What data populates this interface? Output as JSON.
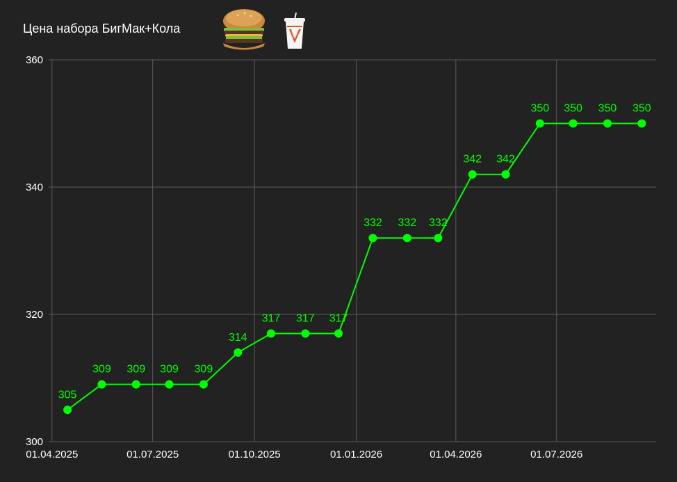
{
  "title": "Цена набора БигМак+Кола",
  "icons": [
    "burger-icon",
    "cola-cup-icon"
  ],
  "colors": {
    "background": "#222222",
    "grid": "#5a5a5a",
    "series": "#00ff00",
    "text": "#ffffff"
  },
  "chart_data": {
    "type": "line",
    "title": "Цена набора БигМак+Кола",
    "xlabel": "",
    "ylabel": "",
    "x_ticks": [
      "01.04.2025",
      "01.07.2025",
      "01.10.2025",
      "01.01.2026",
      "01.04.2026",
      "01.07.2026"
    ],
    "y_ticks": [
      300,
      320,
      340,
      360
    ],
    "ylim": [
      300,
      360
    ],
    "xlim": [
      "2025-03-29",
      "2026-09-29"
    ],
    "grid": true,
    "legend": false,
    "series": [
      {
        "x": [
          "2025-04-15",
          "2025-05-16",
          "2025-06-16",
          "2025-07-16",
          "2025-08-16",
          "2025-09-16",
          "2025-10-16",
          "2025-11-16",
          "2025-12-16",
          "2026-01-16",
          "2026-02-16",
          "2026-03-16",
          "2026-04-16",
          "2026-05-16",
          "2026-06-16",
          "2026-07-16",
          "2026-08-16",
          "2026-09-16"
        ],
        "values": [
          305,
          309,
          309,
          309,
          309,
          314,
          317,
          317,
          317,
          332,
          332,
          332,
          342,
          342,
          350,
          350,
          350,
          350
        ],
        "color": "#00ff00"
      }
    ]
  }
}
